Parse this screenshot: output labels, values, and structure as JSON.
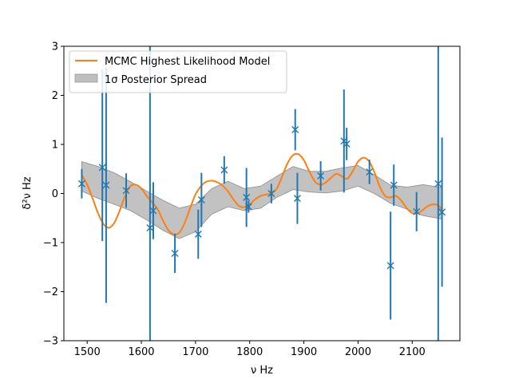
{
  "chart_data": {
    "type": "scatter",
    "xlabel": "ν Hz",
    "ylabel": "δ²ν Hz",
    "xlim": [
      1457,
      2188
    ],
    "ylim": [
      -3,
      3
    ],
    "xticks": [
      "1500",
      "1600",
      "1700",
      "1800",
      "1900",
      "2000",
      "2100"
    ],
    "xtick_values": [
      1500,
      1600,
      1700,
      1800,
      1900,
      2000,
      2100
    ],
    "yticks": [
      "3",
      "2",
      "1",
      "0",
      "−1",
      "−2",
      "−3"
    ],
    "ytick_values": [
      3,
      2,
      1,
      0,
      -1,
      -2,
      -3
    ],
    "grid": false,
    "legend_position": "top-left",
    "legend": [
      {
        "label": "MCMC Highest Likelihood Model",
        "kind": "line",
        "color": "#ff7f0e"
      },
      {
        "label": "1σ Posterior Spread",
        "kind": "patch",
        "color": "#bfbfbf"
      }
    ],
    "observations": {
      "name": "Observed second differences",
      "marker": "x",
      "color": "#1f77b4",
      "points": [
        {
          "x": 1490,
          "y": 0.2,
          "yerr": [
            0.3,
            0.3
          ]
        },
        {
          "x": 1528,
          "y": 0.53,
          "yerr": [
            1.5,
            2.0
          ]
        },
        {
          "x": 1535,
          "y": 0.17,
          "yerr": [
            2.4,
            2.4
          ]
        },
        {
          "x": 1572,
          "y": 0.06,
          "yerr": [
            0.35,
            0.35
          ]
        },
        {
          "x": 1616,
          "y": -0.7,
          "yerr": [
            2.4,
            3.8
          ]
        },
        {
          "x": 1622,
          "y": -0.35,
          "yerr": [
            0.58,
            0.58
          ]
        },
        {
          "x": 1662,
          "y": -1.22,
          "yerr": [
            0.4,
            0.4
          ]
        },
        {
          "x": 1705,
          "y": -0.83,
          "yerr": [
            0.5,
            0.5
          ]
        },
        {
          "x": 1711,
          "y": -0.13,
          "yerr": [
            0.55,
            0.55
          ]
        },
        {
          "x": 1753,
          "y": 0.48,
          "yerr": [
            0.28,
            0.28
          ]
        },
        {
          "x": 1794,
          "y": -0.08,
          "yerr": [
            0.6,
            0.6
          ]
        },
        {
          "x": 1798,
          "y": -0.27,
          "yerr": [
            0.12,
            0.12
          ]
        },
        {
          "x": 1840,
          "y": 0.0,
          "yerr": [
            0.2,
            0.2
          ]
        },
        {
          "x": 1884,
          "y": 1.3,
          "yerr": [
            0.42,
            0.42
          ]
        },
        {
          "x": 1888,
          "y": -0.1,
          "yerr": [
            0.52,
            0.52
          ]
        },
        {
          "x": 1931,
          "y": 0.36,
          "yerr": [
            0.3,
            0.3
          ]
        },
        {
          "x": 1974,
          "y": 1.07,
          "yerr": [
            1.05,
            1.05
          ]
        },
        {
          "x": 1979,
          "y": 1.01,
          "yerr": [
            0.33,
            0.33
          ]
        },
        {
          "x": 2021,
          "y": 0.44,
          "yerr": [
            0.25,
            0.25
          ]
        },
        {
          "x": 2060,
          "y": -1.47,
          "yerr": [
            1.1,
            1.1
          ]
        },
        {
          "x": 2066,
          "y": 0.17,
          "yerr": [
            0.42,
            0.42
          ]
        },
        {
          "x": 2108,
          "y": -0.37,
          "yerr": [
            0.4,
            0.4
          ]
        },
        {
          "x": 2148,
          "y": 0.2,
          "yerr": [
            4.0,
            3.5
          ]
        },
        {
          "x": 2155,
          "y": -0.38,
          "yerr": [
            1.52,
            1.52
          ]
        }
      ]
    },
    "model": {
      "name": "MCMC Highest Likelihood Model",
      "color": "#ff7f0e",
      "x": [
        1490,
        1500,
        1510,
        1520,
        1530,
        1540,
        1550,
        1560,
        1570,
        1580,
        1590,
        1600,
        1610,
        1620,
        1630,
        1640,
        1650,
        1660,
        1670,
        1680,
        1690,
        1700,
        1710,
        1720,
        1730,
        1740,
        1750,
        1760,
        1770,
        1780,
        1790,
        1800,
        1810,
        1820,
        1830,
        1840,
        1850,
        1860,
        1870,
        1880,
        1890,
        1900,
        1910,
        1920,
        1930,
        1940,
        1950,
        1960,
        1970,
        1980,
        1990,
        2000,
        2010,
        2020,
        2030,
        2040,
        2050,
        2060,
        2070,
        2080,
        2090,
        2100,
        2110,
        2120,
        2130,
        2140,
        2150,
        2155
      ],
      "y": [
        0.38,
        0.18,
        -0.1,
        -0.4,
        -0.62,
        -0.7,
        -0.6,
        -0.35,
        -0.05,
        0.15,
        0.18,
        0.1,
        -0.05,
        -0.18,
        -0.32,
        -0.55,
        -0.75,
        -0.83,
        -0.8,
        -0.6,
        -0.3,
        -0.02,
        0.15,
        0.24,
        0.26,
        0.23,
        0.16,
        0.04,
        -0.12,
        -0.25,
        -0.28,
        -0.22,
        -0.12,
        -0.05,
        -0.02,
        0.0,
        0.1,
        0.35,
        0.62,
        0.78,
        0.8,
        0.68,
        0.45,
        0.25,
        0.18,
        0.22,
        0.32,
        0.4,
        0.35,
        0.3,
        0.45,
        0.65,
        0.73,
        0.66,
        0.44,
        0.14,
        -0.05,
        -0.08,
        -0.05,
        -0.15,
        -0.3,
        -0.4,
        -0.4,
        -0.33,
        -0.25,
        -0.22,
        -0.26,
        -0.36
      ]
    },
    "posterior_band": {
      "name": "1σ Posterior Spread",
      "color": "#bfbfbf",
      "x": [
        1490,
        1520,
        1550,
        1580,
        1610,
        1640,
        1670,
        1700,
        1730,
        1760,
        1790,
        1820,
        1850,
        1880,
        1910,
        1940,
        1970,
        2000,
        2030,
        2060,
        2090,
        2120,
        2155
      ],
      "upper": [
        0.65,
        0.55,
        0.42,
        0.24,
        0.05,
        -0.14,
        -0.3,
        -0.22,
        0.1,
        0.25,
        0.1,
        0.15,
        0.35,
        0.55,
        0.45,
        0.45,
        0.52,
        0.57,
        0.38,
        0.17,
        0.13,
        0.18,
        0.12
      ],
      "lower": [
        0.05,
        -0.1,
        -0.22,
        -0.35,
        -0.54,
        -0.75,
        -0.92,
        -0.78,
        -0.42,
        -0.27,
        -0.35,
        -0.3,
        -0.08,
        0.08,
        0.03,
        0.01,
        0.05,
        0.15,
        0.0,
        -0.2,
        -0.32,
        -0.45,
        -0.52
      ]
    }
  }
}
